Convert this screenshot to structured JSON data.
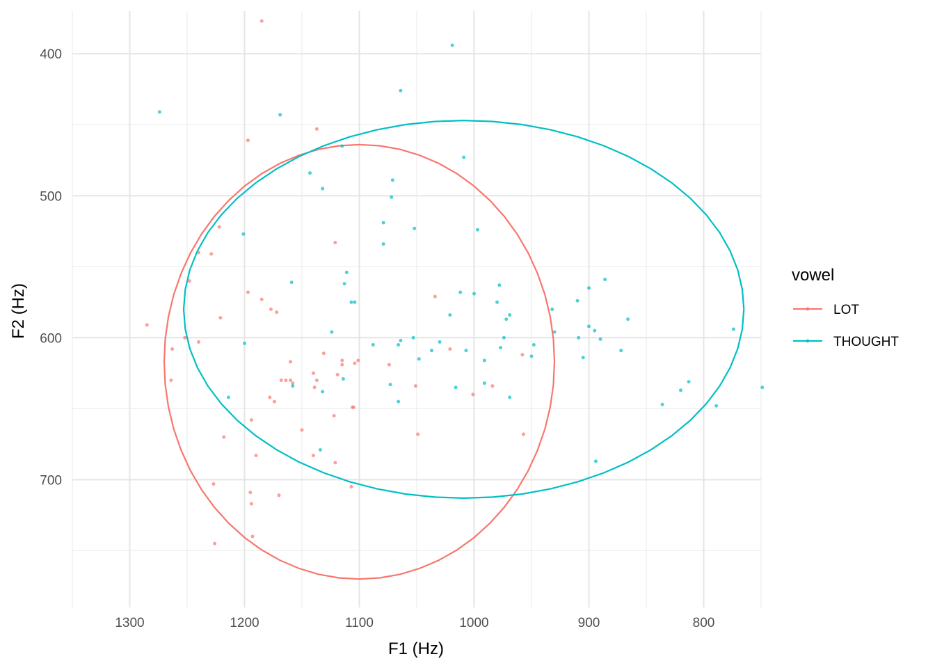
{
  "chart_data": {
    "type": "scatter",
    "xlabel": "F1 (Hz)",
    "ylabel": "F2 (Hz)",
    "x_reversed": true,
    "y_reversed": true,
    "xlim": [
      750,
      1350
    ],
    "ylim": [
      370,
      790
    ],
    "x_ticks": [
      1300,
      1200,
      1100,
      1000,
      900,
      800
    ],
    "y_ticks": [
      400,
      500,
      600,
      700
    ],
    "grid": true,
    "legend": {
      "title": "vowel",
      "position": "right"
    },
    "series": [
      {
        "name": "LOT",
        "color": "#F8766D",
        "points": [
          [
            1185,
            377
          ],
          [
            1137,
            453
          ],
          [
            1197,
            461
          ],
          [
            1222,
            522
          ],
          [
            1240,
            540
          ],
          [
            1229,
            541
          ],
          [
            1121,
            533
          ],
          [
            1248,
            560
          ],
          [
            1197,
            568
          ],
          [
            1185,
            573
          ],
          [
            1177,
            580
          ],
          [
            1172,
            582
          ],
          [
            1221,
            586
          ],
          [
            1285,
            591
          ],
          [
            1034,
            571
          ],
          [
            1252,
            600
          ],
          [
            1240,
            603
          ],
          [
            1263,
            608
          ],
          [
            1131,
            611
          ],
          [
            1101,
            616
          ],
          [
            1074,
            619
          ],
          [
            1115,
            616
          ],
          [
            1115,
            619
          ],
          [
            1160,
            617
          ],
          [
            1104,
            618
          ],
          [
            1137,
            630
          ],
          [
            1164,
            630
          ],
          [
            1168,
            630
          ],
          [
            1119,
            626
          ],
          [
            1264,
            630
          ],
          [
            1140,
            625
          ],
          [
            1160,
            630
          ],
          [
            1051,
            634
          ],
          [
            1178,
            642
          ],
          [
            1139,
            635
          ],
          [
            1174,
            645
          ],
          [
            1158,
            632
          ],
          [
            1105,
            649
          ],
          [
            1106,
            649
          ],
          [
            1021,
            608
          ],
          [
            1001,
            640
          ],
          [
            984,
            634
          ],
          [
            958,
            612
          ],
          [
            1194,
            658
          ],
          [
            1122,
            655
          ],
          [
            1150,
            665
          ],
          [
            1049,
            668
          ],
          [
            957,
            668
          ],
          [
            1218,
            670
          ],
          [
            1190,
            683
          ],
          [
            1140,
            683
          ],
          [
            1121,
            688
          ],
          [
            1107,
            705
          ],
          [
            1227,
            703
          ],
          [
            1195,
            709
          ],
          [
            1170,
            711
          ],
          [
            1194,
            717
          ],
          [
            1193,
            740
          ],
          [
            1226,
            745
          ]
        ],
        "ellipse": {
          "center": [
            1100,
            617
          ],
          "semi_axis_f1": 170,
          "semi_axis_f2": 153
        }
      },
      {
        "name": "THOUGHT",
        "color": "#00BFC4",
        "points": [
          [
            1019,
            394
          ],
          [
            1064,
            426
          ],
          [
            1274,
            441
          ],
          [
            1169,
            443
          ],
          [
            1115,
            465
          ],
          [
            1009,
            473
          ],
          [
            1143,
            484
          ],
          [
            1071,
            489
          ],
          [
            1072,
            501
          ],
          [
            1132,
            495
          ],
          [
            1079,
            519
          ],
          [
            1052,
            523
          ],
          [
            997,
            524
          ],
          [
            1201,
            527
          ],
          [
            1079,
            534
          ],
          [
            1111,
            554
          ],
          [
            886,
            559
          ],
          [
            1159,
            561
          ],
          [
            978,
            563
          ],
          [
            1113,
            562
          ],
          [
            900,
            565
          ],
          [
            1012,
            568
          ],
          [
            1000,
            569
          ],
          [
            910,
            574
          ],
          [
            1107,
            575
          ],
          [
            1104,
            575
          ],
          [
            980,
            575
          ],
          [
            932,
            580
          ],
          [
            969,
            584
          ],
          [
            1021,
            584
          ],
          [
            866,
            587
          ],
          [
            972,
            587
          ],
          [
            900,
            592
          ],
          [
            895,
            595
          ],
          [
            930,
            596
          ],
          [
            1124,
            596
          ],
          [
            774,
            594
          ],
          [
            974,
            600
          ],
          [
            1053,
            600
          ],
          [
            909,
            600
          ],
          [
            890,
            601
          ],
          [
            1064,
            602
          ],
          [
            1030,
            603
          ],
          [
            1200,
            604
          ],
          [
            1088,
            605
          ],
          [
            1066,
            605
          ],
          [
            948,
            605
          ],
          [
            977,
            607
          ],
          [
            1007,
            609
          ],
          [
            1037,
            609
          ],
          [
            872,
            609
          ],
          [
            905,
            614
          ],
          [
            950,
            613
          ],
          [
            1048,
            615
          ],
          [
            991,
            616
          ],
          [
            1114,
            629
          ],
          [
            1073,
            633
          ],
          [
            1016,
            635
          ],
          [
            1158,
            634
          ],
          [
            1132,
            638
          ],
          [
            820,
            637
          ],
          [
            813,
            631
          ],
          [
            991,
            632
          ],
          [
            1066,
            645
          ],
          [
            969,
            642
          ],
          [
            836,
            647
          ],
          [
            789,
            648
          ],
          [
            1214,
            642
          ],
          [
            1134,
            679
          ],
          [
            749,
            635
          ],
          [
            894,
            687
          ]
        ],
        "ellipse": {
          "center": [
            1009,
            580
          ],
          "semi_axis_f1": 244,
          "semi_axis_f2": 133
        }
      }
    ]
  }
}
